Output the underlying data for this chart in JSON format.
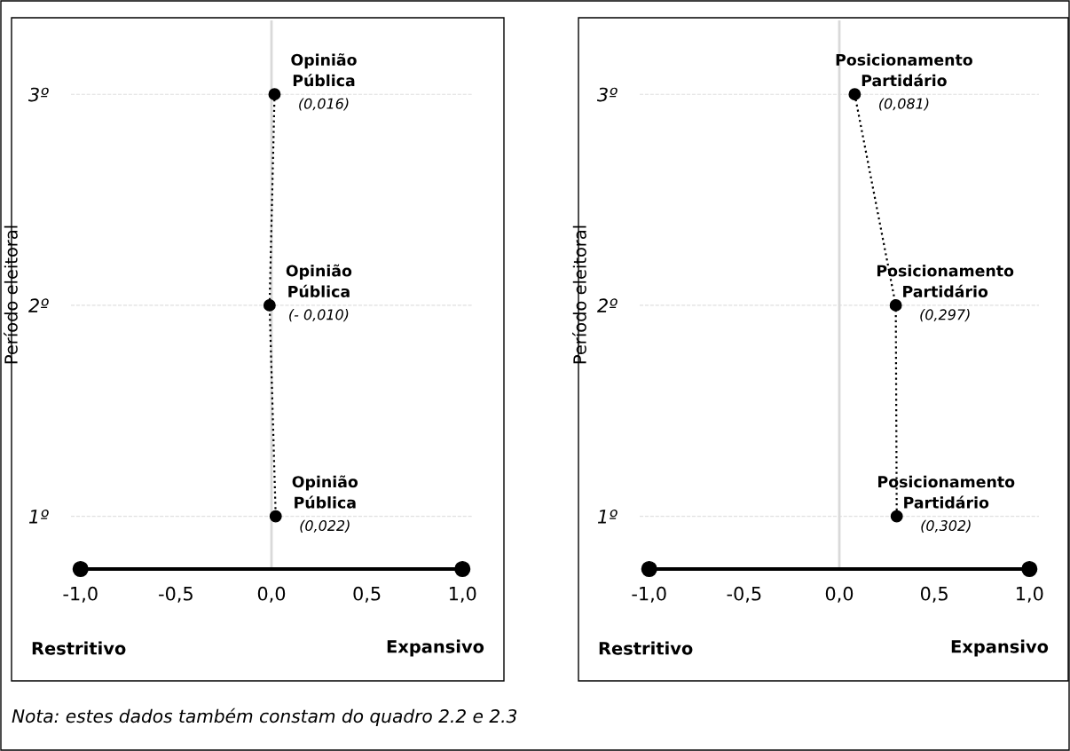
{
  "chart_data": [
    {
      "type": "line",
      "orientation": "horizontal",
      "ylabel": "Período eleitoral",
      "xlim": [
        -1.05,
        1.05
      ],
      "xticks": [
        {
          "value": -1,
          "label": "-1,0"
        },
        {
          "value": -0.5,
          "label": "-0,5"
        },
        {
          "value": 0,
          "label": "0,0"
        },
        {
          "value": 0.5,
          "label": "0,5"
        },
        {
          "value": 1,
          "label": "1,0"
        }
      ],
      "categories": [
        "3º",
        "2º",
        "1º"
      ],
      "grid": "y",
      "marker": "circle",
      "line_style": "dotted",
      "ref_lines": [
        {
          "axis": "x",
          "value": 0,
          "color": "#d9d9d9"
        }
      ],
      "series": [
        {
          "name": "Opinião\nPública",
          "color": "#000000",
          "values": [
            0.016,
            -0.01,
            0.022
          ],
          "value_labels": [
            "(0,016)",
            "(- 0,010)",
            "(0,022)"
          ]
        }
      ],
      "annotations": [
        "Restritivo",
        "Expansivo",
        "Nota: estes dados também constam do quadro 2.2 e 2.3"
      ]
    },
    {
      "type": "line",
      "orientation": "horizontal",
      "ylabel": "Período eleitoral",
      "xlim": [
        -1.05,
        1.05
      ],
      "xticks": [
        {
          "value": -1,
          "label": "-1,0"
        },
        {
          "value": -0.5,
          "label": "-0,5"
        },
        {
          "value": 0,
          "label": "0,0"
        },
        {
          "value": 0.5,
          "label": "0,5"
        },
        {
          "value": 1,
          "label": "1,0"
        }
      ],
      "categories": [
        "3º",
        "2º",
        "1º"
      ],
      "grid": "y",
      "marker": "circle",
      "line_style": "dotted",
      "ref_lines": [
        {
          "axis": "x",
          "value": 0,
          "color": "#d9d9d9"
        }
      ],
      "series": [
        {
          "name": "Posicionamento\nPartidário",
          "color": "#000000",
          "values": [
            0.081,
            0.297,
            0.302
          ],
          "value_labels": [
            "(0,081)",
            "(0,297)",
            "(0,302)"
          ]
        }
      ],
      "annotations": [
        "Restritivo",
        "Expansivo"
      ]
    }
  ]
}
